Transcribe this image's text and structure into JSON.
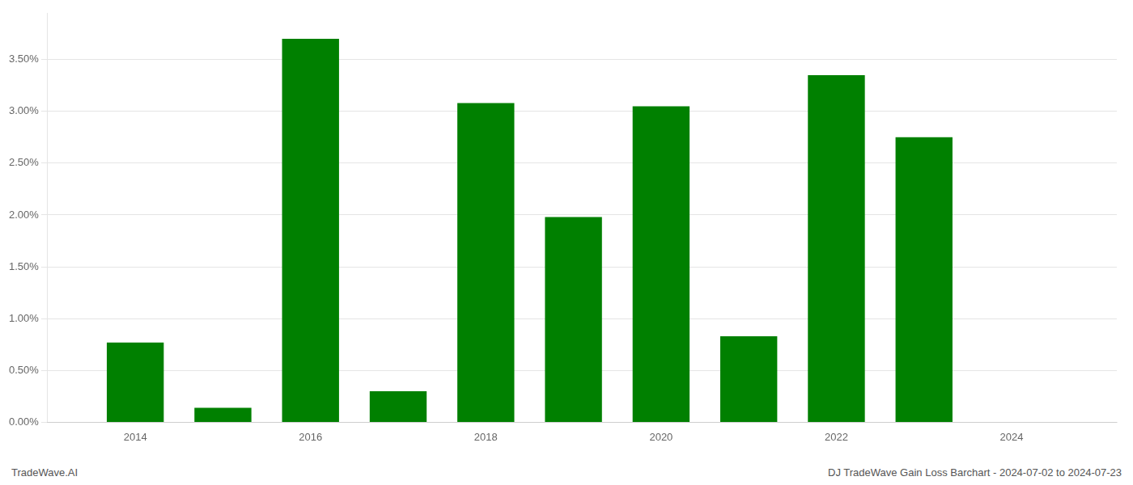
{
  "chart_data": {
    "type": "bar",
    "x": [
      2014,
      2015,
      2016,
      2017,
      2018,
      2019,
      2020,
      2021,
      2022,
      2023,
      2024
    ],
    "values": [
      0.0077,
      0.0014,
      0.037,
      0.003,
      0.0308,
      0.0198,
      0.0305,
      0.0083,
      0.0335,
      0.0275,
      0.0
    ],
    "color": "#008000",
    "xlim": [
      2013.0,
      2025.2
    ],
    "xticks": [
      2014,
      2016,
      2018,
      2020,
      2022,
      2024
    ],
    "ylim": [
      0,
      0.0395
    ],
    "yticks": [
      {
        "value": 0.0,
        "label": "0.00%"
      },
      {
        "value": 0.005,
        "label": "0.50%"
      },
      {
        "value": 0.01,
        "label": "1.00%"
      },
      {
        "value": 0.015,
        "label": "1.50%"
      },
      {
        "value": 0.02,
        "label": "2.00%"
      },
      {
        "value": 0.025,
        "label": "2.50%"
      },
      {
        "value": 0.03,
        "label": "3.00%"
      },
      {
        "value": 0.035,
        "label": "3.50%"
      }
    ],
    "grid": "y",
    "annotations": [
      "TradeWave.AI",
      "DJ TradeWave Gain Loss Barchart - 2024-07-02 to 2024-07-23"
    ]
  }
}
